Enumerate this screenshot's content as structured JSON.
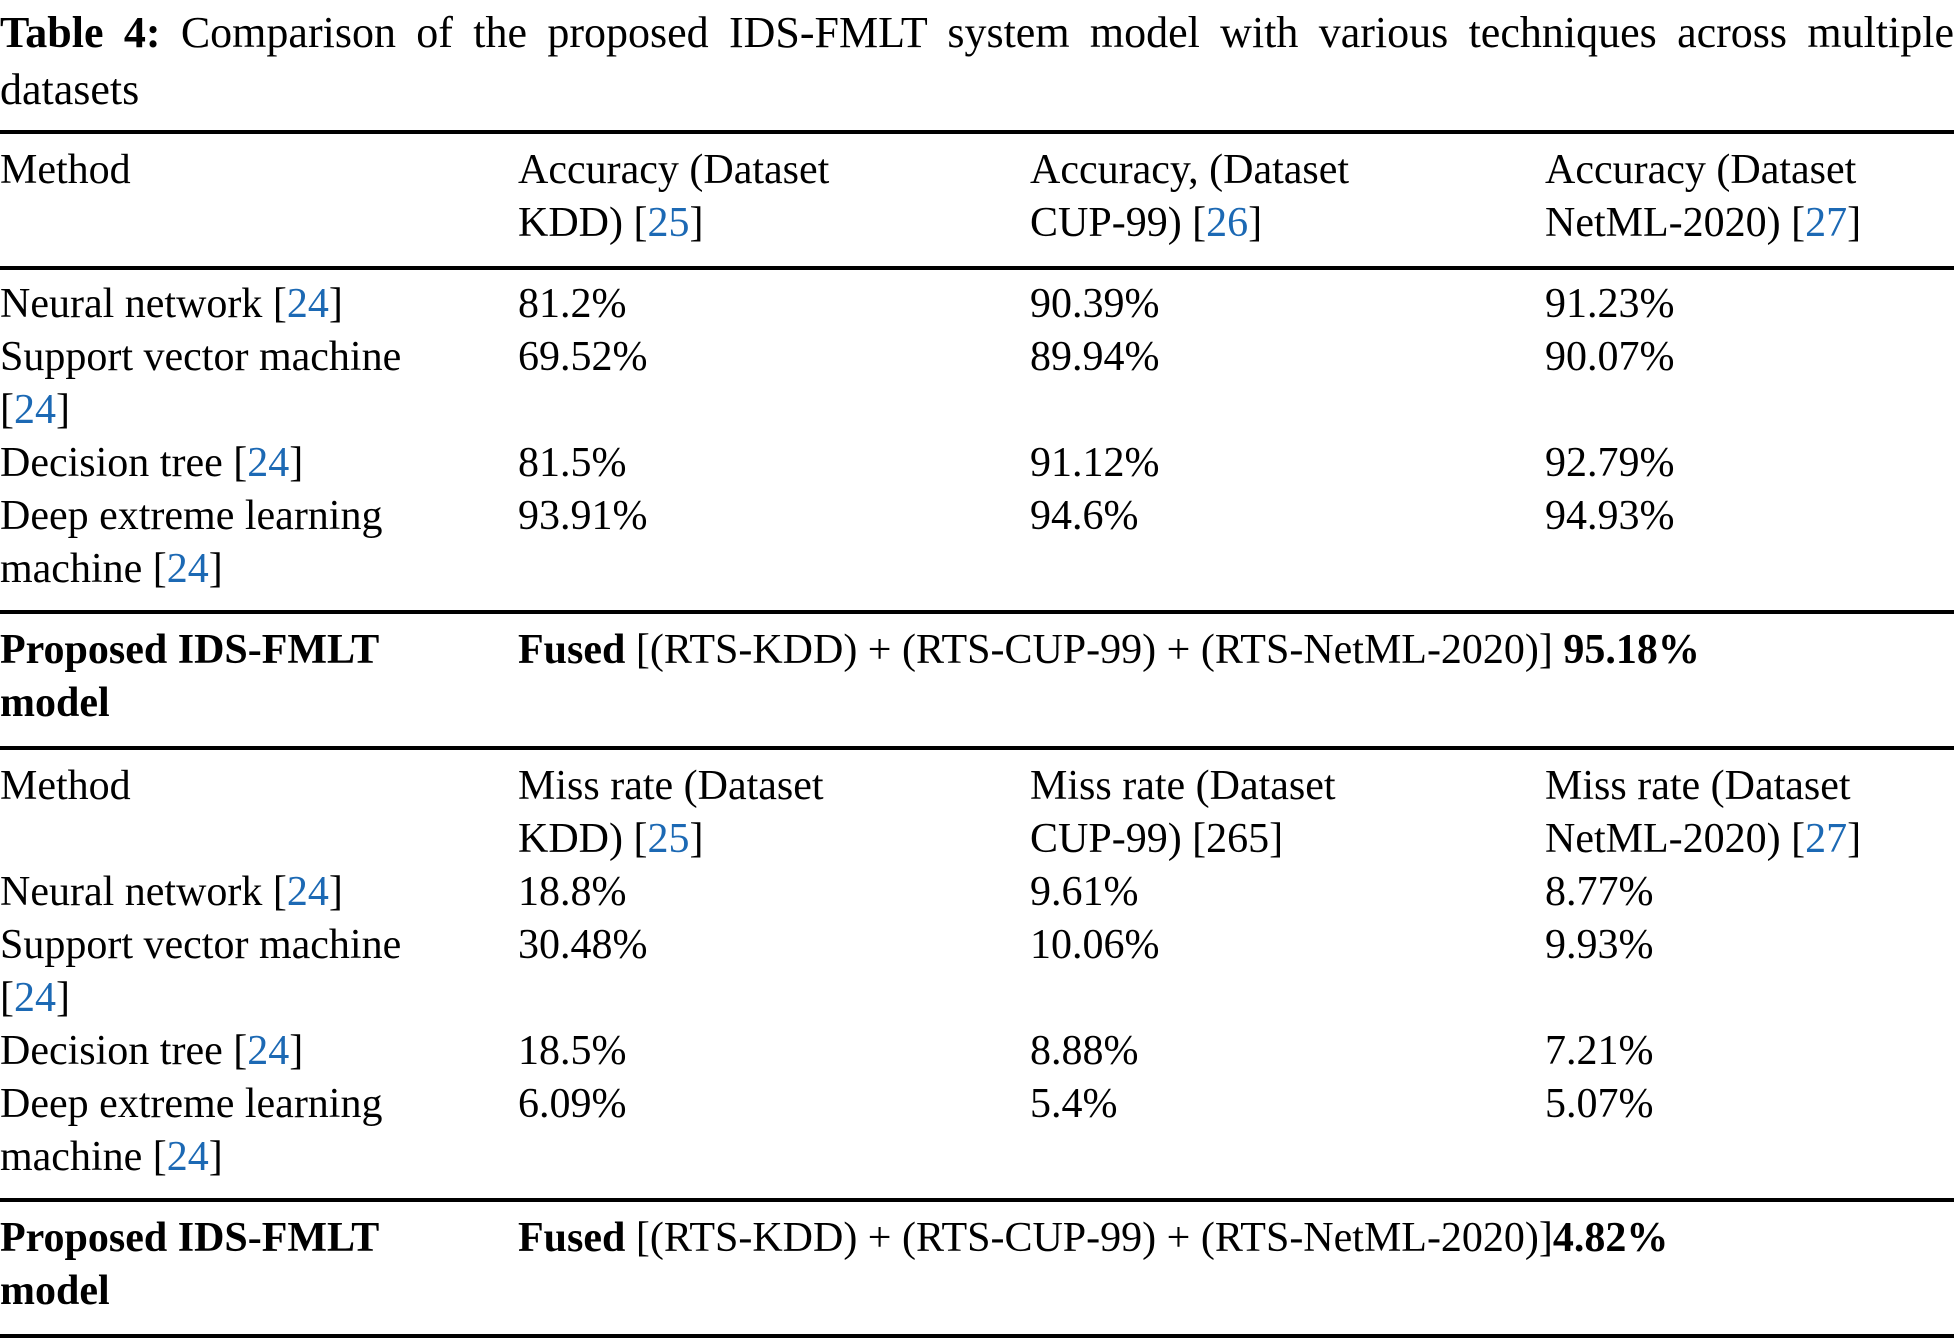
{
  "title": {
    "label": "Table 4:",
    "rest": " Comparison of the proposed IDS-FMLT system model with various techniques across multiple datasets"
  },
  "colors": {
    "link": "#1c69b4",
    "text": "#000000"
  },
  "accuracy": {
    "header": {
      "method": "Method",
      "kdd": {
        "line1": "Accuracy (Dataset",
        "line2_pre": "KDD) [",
        "ref": "25",
        "line2_post": "]"
      },
      "cup": {
        "line1": "Accuracy, (Dataset",
        "line2_pre": "CUP-99) [",
        "ref": "26",
        "line2_post": "]"
      },
      "netml": {
        "line1": "Accuracy (Dataset",
        "line2_pre": "NetML-2020) [",
        "ref": "27",
        "line2_post": "]"
      }
    },
    "rows": [
      {
        "method_pre": "Neural network [",
        "ref": "24",
        "method_post": "]",
        "kdd": "81.2%",
        "cup": "90.39%",
        "netml": "91.23%"
      },
      {
        "method_pre": "Support vector machine [",
        "ref": "24",
        "method_post": "]",
        "kdd": "69.52%",
        "cup": "89.94%",
        "netml": "90.07%"
      },
      {
        "method_pre": "Decision tree [",
        "ref": "24",
        "method_post": "]",
        "kdd": "81.5%",
        "cup": "91.12%",
        "netml": "92.79%"
      },
      {
        "method_pre": "Deep extreme learning machine [",
        "ref": "24",
        "method_post": "]",
        "kdd": "93.91%",
        "cup": "94.6%",
        "netml": "94.93%"
      }
    ],
    "proposed": {
      "method": "Proposed IDS-FMLT model",
      "fused_label": "Fused",
      "formula": " [(RTS-KDD) + (RTS-CUP-99) + (RTS-NetML-2020)] ",
      "value": "95.18%"
    }
  },
  "missrate": {
    "header": {
      "method": "Method",
      "kdd": {
        "line1": "Miss rate (Dataset",
        "line2_pre": "KDD) [",
        "ref": "25",
        "line2_post": "]"
      },
      "cup": {
        "line1": "Miss rate (Dataset",
        "line2": "CUP-99) [265]"
      },
      "netml": {
        "line1": "Miss rate (Dataset",
        "line2_pre": "NetML-2020) [",
        "ref": "27",
        "line2_post": "]"
      }
    },
    "rows": [
      {
        "method_pre": "Neural network [",
        "ref": "24",
        "method_post": "]",
        "kdd": "18.8%",
        "cup": "9.61%",
        "netml": "8.77%"
      },
      {
        "method_pre": "Support vector machine [",
        "ref": "24",
        "method_post": "]",
        "kdd": "30.48%",
        "cup": "10.06%",
        "netml": "9.93%"
      },
      {
        "method_pre": "Decision tree [",
        "ref": "24",
        "method_post": "]",
        "kdd": "18.5%",
        "cup": "8.88%",
        "netml": "7.21%"
      },
      {
        "method_pre": "Deep extreme learning machine [",
        "ref": "24",
        "method_post": "]",
        "kdd": "6.09%",
        "cup": "5.4%",
        "netml": "5.07%"
      }
    ],
    "proposed": {
      "method": "Proposed IDS-FMLT model",
      "fused_label": "Fused",
      "formula": " [(RTS-KDD) + (RTS-CUP-99) + (RTS-NetML-2020)]",
      "value": "4.82%"
    }
  }
}
